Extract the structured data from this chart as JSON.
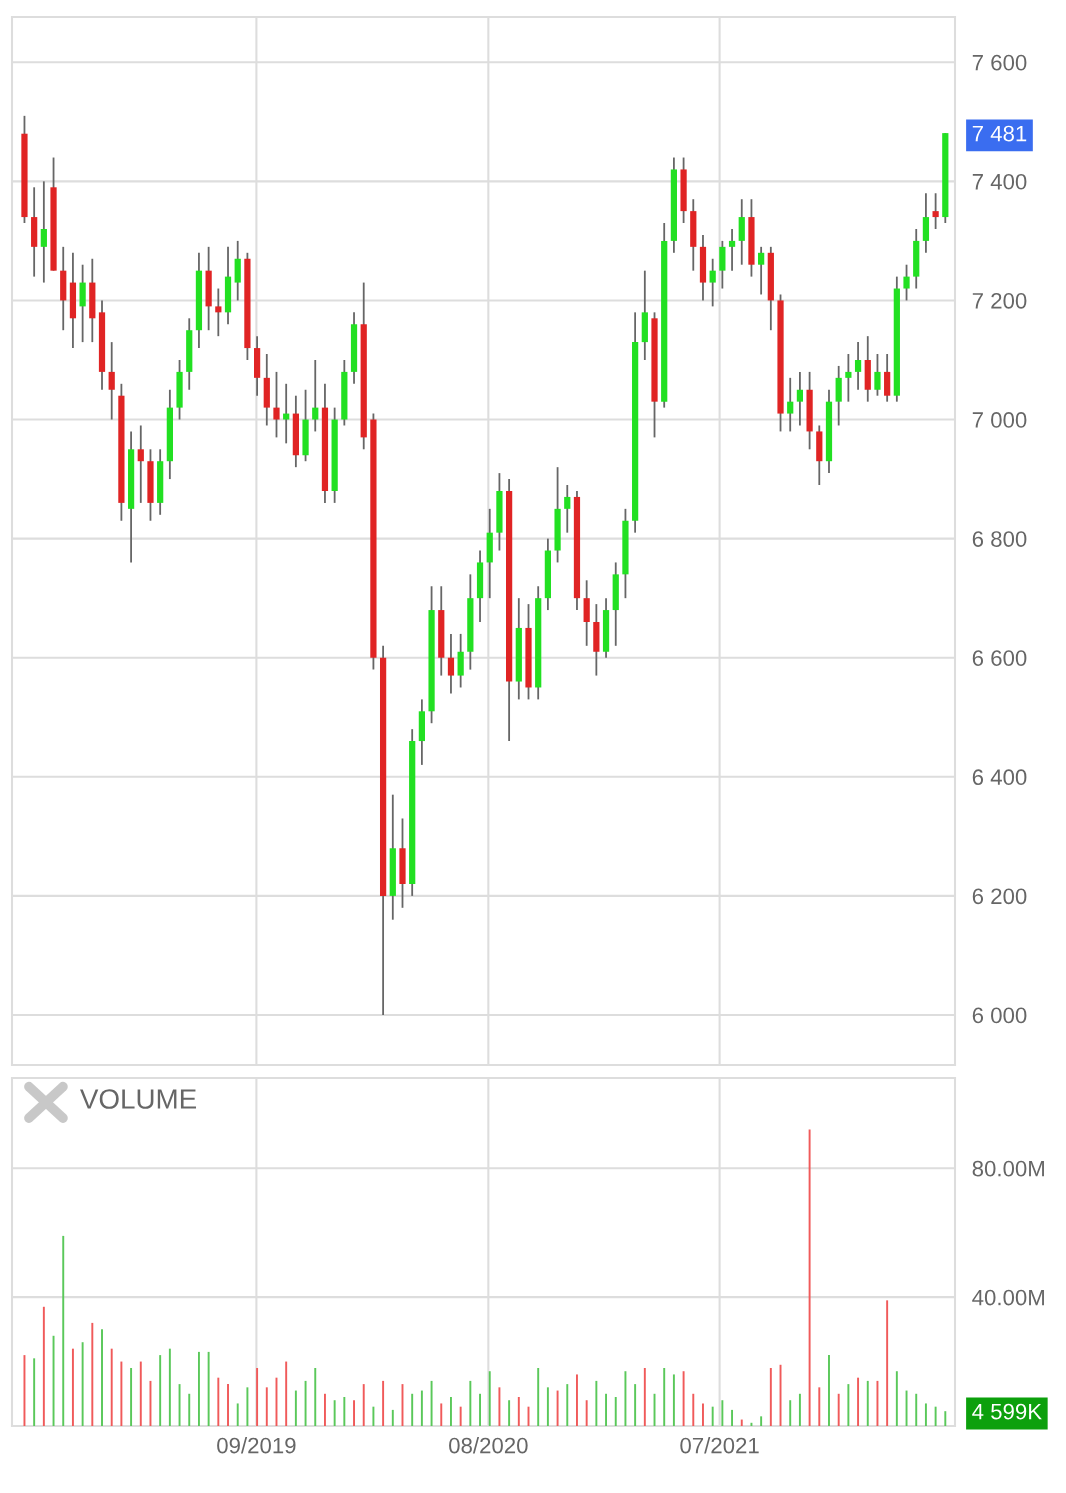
{
  "chart_data": [
    {
      "type": "candlestick",
      "x": [
        "2018-10-01",
        "2018-10-15",
        "2018-10-29",
        "2018-11-12",
        "2018-11-26",
        "2018-12-10",
        "2018-12-24",
        "2019-01-07",
        "2019-01-21",
        "2019-02-04",
        "2019-02-18",
        "2019-03-04",
        "2019-03-18",
        "2019-04-01",
        "2019-04-15",
        "2019-04-29",
        "2019-05-13",
        "2019-05-27",
        "2019-06-10",
        "2019-06-24",
        "2019-07-08",
        "2019-07-22",
        "2019-08-05",
        "2019-08-19",
        "2019-09-02",
        "2019-09-16",
        "2019-09-30",
        "2019-10-14",
        "2019-10-28",
        "2019-11-11",
        "2019-11-25",
        "2019-12-09",
        "2019-12-23",
        "2020-01-06",
        "2020-01-20",
        "2020-02-03",
        "2020-02-17",
        "2020-03-02",
        "2020-03-16",
        "2020-03-30",
        "2020-04-13",
        "2020-04-27",
        "2020-05-11",
        "2020-05-25",
        "2020-06-08",
        "2020-06-22",
        "2020-07-06",
        "2020-07-20",
        "2020-08-03",
        "2020-08-17",
        "2020-08-31",
        "2020-09-14",
        "2020-09-28",
        "2020-10-12",
        "2020-10-26",
        "2020-11-09",
        "2020-11-23",
        "2020-12-07",
        "2020-12-21",
        "2021-01-04",
        "2021-01-18",
        "2021-02-01",
        "2021-02-15",
        "2021-03-01",
        "2021-03-15",
        "2021-03-29",
        "2021-04-12",
        "2021-04-26",
        "2021-05-10",
        "2021-05-24",
        "2021-06-07",
        "2021-06-21",
        "2021-07-05",
        "2021-07-19",
        "2021-08-02",
        "2021-08-16",
        "2021-08-30",
        "2021-09-13",
        "2021-09-27",
        "2021-10-11",
        "2021-10-25",
        "2021-11-08",
        "2021-11-22",
        "2021-12-06",
        "2021-12-20",
        "2022-01-03",
        "2022-01-17",
        "2022-01-31",
        "2022-02-14",
        "2022-02-28",
        "2022-03-14",
        "2022-03-28",
        "2022-04-11",
        "2022-04-25",
        "2022-05-09",
        "2022-05-23"
      ],
      "ohlc": [
        [
          7480,
          7510,
          7330,
          7340
        ],
        [
          7340,
          7390,
          7240,
          7290
        ],
        [
          7290,
          7400,
          7230,
          7320
        ],
        [
          7390,
          7440,
          7250,
          7250
        ],
        [
          7250,
          7290,
          7150,
          7200
        ],
        [
          7230,
          7280,
          7120,
          7170
        ],
        [
          7190,
          7260,
          7130,
          7230
        ],
        [
          7230,
          7270,
          7130,
          7170
        ],
        [
          7180,
          7200,
          7050,
          7080
        ],
        [
          7080,
          7130,
          7000,
          7050
        ],
        [
          7040,
          7060,
          6830,
          6860
        ],
        [
          6850,
          6980,
          6760,
          6950
        ],
        [
          6950,
          6990,
          6860,
          6930
        ],
        [
          6930,
          6950,
          6830,
          6860
        ],
        [
          6860,
          6950,
          6840,
          6930
        ],
        [
          6930,
          7050,
          6900,
          7020
        ],
        [
          7020,
          7100,
          7000,
          7080
        ],
        [
          7080,
          7170,
          7050,
          7150
        ],
        [
          7150,
          7280,
          7120,
          7250
        ],
        [
          7250,
          7290,
          7150,
          7190
        ],
        [
          7190,
          7220,
          7140,
          7180
        ],
        [
          7180,
          7290,
          7160,
          7240
        ],
        [
          7230,
          7300,
          7200,
          7270
        ],
        [
          7270,
          7280,
          7100,
          7120
        ],
        [
          7120,
          7140,
          7040,
          7070
        ],
        [
          7070,
          7110,
          6990,
          7020
        ],
        [
          7020,
          7080,
          6970,
          7000
        ],
        [
          7000,
          7060,
          6960,
          7010
        ],
        [
          7010,
          7040,
          6920,
          6940
        ],
        [
          6940,
          7050,
          6930,
          7000
        ],
        [
          7000,
          7100,
          6980,
          7020
        ],
        [
          7020,
          7060,
          6860,
          6880
        ],
        [
          6880,
          7020,
          6860,
          7000
        ],
        [
          7000,
          7100,
          6990,
          7080
        ],
        [
          7080,
          7180,
          7060,
          7160
        ],
        [
          7160,
          7230,
          6950,
          6970
        ],
        [
          7000,
          7010,
          6580,
          6600
        ],
        [
          6600,
          6620,
          6000,
          6200
        ],
        [
          6200,
          6370,
          6160,
          6280
        ],
        [
          6280,
          6330,
          6180,
          6220
        ],
        [
          6220,
          6480,
          6200,
          6460
        ],
        [
          6460,
          6530,
          6420,
          6510
        ],
        [
          6510,
          6720,
          6490,
          6680
        ],
        [
          6680,
          6720,
          6570,
          6600
        ],
        [
          6600,
          6640,
          6540,
          6570
        ],
        [
          6570,
          6640,
          6550,
          6610
        ],
        [
          6610,
          6740,
          6580,
          6700
        ],
        [
          6700,
          6780,
          6660,
          6760
        ],
        [
          6760,
          6850,
          6700,
          6810
        ],
        [
          6810,
          6910,
          6780,
          6880
        ],
        [
          6880,
          6900,
          6460,
          6560
        ],
        [
          6560,
          6700,
          6530,
          6650
        ],
        [
          6650,
          6690,
          6530,
          6550
        ],
        [
          6550,
          6720,
          6530,
          6700
        ],
        [
          6700,
          6800,
          6680,
          6780
        ],
        [
          6780,
          6920,
          6760,
          6850
        ],
        [
          6850,
          6890,
          6810,
          6870
        ],
        [
          6870,
          6880,
          6680,
          6700
        ],
        [
          6700,
          6730,
          6620,
          6660
        ],
        [
          6660,
          6690,
          6570,
          6610
        ],
        [
          6610,
          6700,
          6600,
          6680
        ],
        [
          6680,
          6760,
          6620,
          6740
        ],
        [
          6740,
          6850,
          6700,
          6830
        ],
        [
          6830,
          7180,
          6810,
          7130
        ],
        [
          7130,
          7250,
          7100,
          7180
        ],
        [
          7170,
          7180,
          6970,
          7030
        ],
        [
          7030,
          7330,
          7020,
          7300
        ],
        [
          7300,
          7440,
          7280,
          7420
        ],
        [
          7420,
          7440,
          7330,
          7350
        ],
        [
          7350,
          7370,
          7250,
          7290
        ],
        [
          7290,
          7310,
          7200,
          7230
        ],
        [
          7230,
          7270,
          7190,
          7250
        ],
        [
          7250,
          7300,
          7220,
          7290
        ],
        [
          7290,
          7320,
          7250,
          7300
        ],
        [
          7300,
          7370,
          7260,
          7340
        ],
        [
          7340,
          7370,
          7240,
          7260
        ],
        [
          7260,
          7290,
          7210,
          7280
        ],
        [
          7280,
          7290,
          7150,
          7200
        ],
        [
          7200,
          7210,
          6980,
          7010
        ],
        [
          7010,
          7070,
          6980,
          7030
        ],
        [
          7030,
          7080,
          6990,
          7050
        ],
        [
          7050,
          7080,
          6950,
          6980
        ],
        [
          6980,
          6990,
          6890,
          6930
        ],
        [
          6930,
          7050,
          6910,
          7030
        ],
        [
          7030,
          7090,
          6990,
          7070
        ],
        [
          7070,
          7110,
          7030,
          7080
        ],
        [
          7080,
          7130,
          7050,
          7100
        ],
        [
          7100,
          7140,
          7030,
          7050
        ],
        [
          7050,
          7110,
          7040,
          7080
        ],
        [
          7080,
          7110,
          7030,
          7040
        ],
        [
          7040,
          7240,
          7030,
          7220
        ],
        [
          7220,
          7260,
          7200,
          7240
        ],
        [
          7240,
          7320,
          7220,
          7300
        ],
        [
          7300,
          7380,
          7280,
          7340
        ],
        [
          7350,
          7380,
          7320,
          7340
        ],
        [
          7340,
          7481,
          7330,
          7481
        ]
      ],
      "colors": [
        "#e02424",
        "#e02424",
        "#22e022",
        "#e02424",
        "#e02424",
        "#e02424",
        "#22e022",
        "#e02424",
        "#e02424",
        "#e02424",
        "#e02424",
        "#22e022",
        "#e02424",
        "#e02424",
        "#22e022",
        "#22e022",
        "#22e022",
        "#22e022",
        "#22e022",
        "#e02424",
        "#e02424",
        "#22e022",
        "#22e022",
        "#e02424",
        "#e02424",
        "#e02424",
        "#e02424",
        "#22e022",
        "#e02424",
        "#22e022",
        "#22e022",
        "#e02424",
        "#22e022",
        "#22e022",
        "#22e022",
        "#e02424",
        "#e02424",
        "#e02424",
        "#22e022",
        "#e02424",
        "#22e022",
        "#22e022",
        "#22e022",
        "#e02424",
        "#e02424",
        "#22e022",
        "#22e022",
        "#22e022",
        "#22e022",
        "#22e022",
        "#e02424",
        "#22e022",
        "#e02424",
        "#22e022",
        "#22e022",
        "#22e022",
        "#22e022",
        "#e02424",
        "#e02424",
        "#e02424",
        "#22e022",
        "#22e022",
        "#22e022",
        "#22e022",
        "#22e022",
        "#e02424",
        "#22e022",
        "#22e022",
        "#e02424",
        "#e02424",
        "#e02424",
        "#22e022",
        "#22e022",
        "#22e022",
        "#22e022",
        "#e02424",
        "#22e022",
        "#e02424",
        "#e02424",
        "#22e022",
        "#22e022",
        "#e02424",
        "#e02424",
        "#22e022",
        "#22e022",
        "#22e022",
        "#22e022",
        "#e02424",
        "#22e022",
        "#e02424",
        "#22e022",
        "#22e022",
        "#22e022",
        "#22e022",
        "#e02424",
        "#22e022"
      ],
      "xlim": [
        "2018-09-13",
        "2022-06-06"
      ],
      "xticks": [
        {
          "value": "2019-09-01",
          "label": null
        },
        {
          "value": "2020-08-01",
          "label": null
        },
        {
          "value": "2021-07-01",
          "label": null
        }
      ],
      "ylim": [
        5916,
        7676
      ],
      "yticks": [
        {
          "value": 6000,
          "label": "6 000"
        },
        {
          "value": 6200,
          "label": "6 200"
        },
        {
          "value": 6400,
          "label": "6 400"
        },
        {
          "value": 6600,
          "label": "6 600"
        },
        {
          "value": 6800,
          "label": "6 800"
        },
        {
          "value": 7000,
          "label": "7 000"
        },
        {
          "value": 7200,
          "label": "7 200"
        },
        {
          "value": 7400,
          "label": "7 400"
        },
        {
          "value": 7481,
          "label": "7 481"
        },
        {
          "value": 7600,
          "label": "7 600"
        }
      ],
      "grid": true,
      "tick_labels": "y"
    },
    {
      "type": "bar",
      "title": "VOLUME",
      "x": [
        "2018-10-01",
        "2018-10-15",
        "2018-10-29",
        "2018-11-12",
        "2018-11-26",
        "2018-12-10",
        "2018-12-24",
        "2019-01-07",
        "2019-01-21",
        "2019-02-04",
        "2019-02-18",
        "2019-03-04",
        "2019-03-18",
        "2019-04-01",
        "2019-04-15",
        "2019-04-29",
        "2019-05-13",
        "2019-05-27",
        "2019-06-10",
        "2019-06-24",
        "2019-07-08",
        "2019-07-22",
        "2019-08-05",
        "2019-08-19",
        "2019-09-02",
        "2019-09-16",
        "2019-09-30",
        "2019-10-14",
        "2019-10-28",
        "2019-11-11",
        "2019-11-25",
        "2019-12-09",
        "2019-12-23",
        "2020-01-06",
        "2020-01-20",
        "2020-02-03",
        "2020-02-17",
        "2020-03-02",
        "2020-03-16",
        "2020-03-30",
        "2020-04-13",
        "2020-04-27",
        "2020-05-11",
        "2020-05-25",
        "2020-06-08",
        "2020-06-22",
        "2020-07-06",
        "2020-07-20",
        "2020-08-03",
        "2020-08-17",
        "2020-08-31",
        "2020-09-14",
        "2020-09-28",
        "2020-10-12",
        "2020-10-26",
        "2020-11-09",
        "2020-11-23",
        "2020-12-07",
        "2020-12-21",
        "2021-01-04",
        "2021-01-18",
        "2021-02-01",
        "2021-02-15",
        "2021-03-01",
        "2021-03-15",
        "2021-03-29",
        "2021-04-12",
        "2021-04-26",
        "2021-05-10",
        "2021-05-24",
        "2021-06-07",
        "2021-06-21",
        "2021-07-05",
        "2021-07-19",
        "2021-08-02",
        "2021-08-16",
        "2021-08-30",
        "2021-09-13",
        "2021-09-27",
        "2021-10-11",
        "2021-10-25",
        "2021-11-08",
        "2021-11-22",
        "2021-12-06",
        "2021-12-20",
        "2022-01-03",
        "2022-01-17",
        "2022-01-31",
        "2022-02-14",
        "2022-02-28",
        "2022-03-14",
        "2022-03-28",
        "2022-04-11",
        "2022-04-25",
        "2022-05-09",
        "2022-05-23"
      ],
      "values": [
        22000000,
        21000000,
        37000000,
        28000000,
        59000000,
        24000000,
        26000000,
        32000000,
        30000000,
        24000000,
        20000000,
        18000000,
        20000000,
        14000000,
        22000000,
        24000000,
        13000000,
        10000000,
        23000000,
        23000000,
        15000000,
        13000000,
        7000000,
        12000000,
        18000000,
        12000000,
        15000000,
        20000000,
        11000000,
        14000000,
        18000000,
        10000000,
        8000000,
        9000000,
        8000000,
        13000000,
        6000000,
        14000000,
        5000000,
        13000000,
        10000000,
        11000000,
        14000000,
        7000000,
        9000000,
        6000000,
        14000000,
        10000000,
        17000000,
        12000000,
        8000000,
        9000000,
        6000000,
        18000000,
        12000000,
        11000000,
        13000000,
        16000000,
        8000000,
        14000000,
        10000000,
        9000000,
        17000000,
        13000000,
        18000000,
        10000000,
        18000000,
        16000000,
        17000000,
        10000000,
        7000000,
        6000000,
        8000000,
        5000000,
        2000000,
        1000000,
        3000000,
        18000000,
        19000000,
        8000000,
        10000000,
        92000000,
        12000000,
        22000000,
        10000000,
        13000000,
        15000000,
        14000000,
        14000000,
        39000000,
        17000000,
        11000000,
        10000000,
        7000000,
        6000000,
        4599000
      ],
      "colors": [
        "#f05a5a",
        "#5ac85a",
        "#f05a5a",
        "#5ac85a",
        "#5ac85a",
        "#f05a5a",
        "#5ac85a",
        "#f05a5a",
        "#5ac85a",
        "#f05a5a",
        "#f05a5a",
        "#5ac85a",
        "#f05a5a",
        "#f05a5a",
        "#5ac85a",
        "#5ac85a",
        "#5ac85a",
        "#5ac85a",
        "#5ac85a",
        "#5ac85a",
        "#f05a5a",
        "#f05a5a",
        "#5ac85a",
        "#5ac85a",
        "#f05a5a",
        "#f05a5a",
        "#f05a5a",
        "#f05a5a",
        "#5ac85a",
        "#5ac85a",
        "#5ac85a",
        "#f05a5a",
        "#5ac85a",
        "#5ac85a",
        "#f05a5a",
        "#f05a5a",
        "#5ac85a",
        "#f05a5a",
        "#5ac85a",
        "#f05a5a",
        "#5ac85a",
        "#5ac85a",
        "#5ac85a",
        "#f05a5a",
        "#5ac85a",
        "#f05a5a",
        "#5ac85a",
        "#5ac85a",
        "#5ac85a",
        "#f05a5a",
        "#5ac85a",
        "#f05a5a",
        "#f05a5a",
        "#5ac85a",
        "#5ac85a",
        "#f05a5a",
        "#5ac85a",
        "#f05a5a",
        "#f05a5a",
        "#5ac85a",
        "#5ac85a",
        "#5ac85a",
        "#5ac85a",
        "#5ac85a",
        "#f05a5a",
        "#5ac85a",
        "#5ac85a",
        "#5ac85a",
        "#f05a5a",
        "#f05a5a",
        "#f05a5a",
        "#5ac85a",
        "#5ac85a",
        "#5ac85a",
        "#f05a5a",
        "#5ac85a",
        "#5ac85a",
        "#f05a5a",
        "#f05a5a",
        "#5ac85a",
        "#5ac85a",
        "#f05a5a",
        "#f05a5a",
        "#5ac85a",
        "#f05a5a",
        "#5ac85a",
        "#f05a5a",
        "#5ac85a",
        "#f05a5a",
        "#f05a5a",
        "#5ac85a",
        "#5ac85a",
        "#5ac85a",
        "#5ac85a",
        "#5ac85a",
        "#5ac85a"
      ],
      "xlim": [
        "2018-09-13",
        "2022-06-06"
      ],
      "xticks": [
        {
          "value": "2019-09-01",
          "label": "09/2019"
        },
        {
          "value": "2020-08-01",
          "label": "08/2020"
        },
        {
          "value": "2021-07-01",
          "label": "07/2021"
        }
      ],
      "ylim": [
        0,
        108000000
      ],
      "yticks": [
        {
          "value": 4599000,
          "label": "4 599K"
        },
        {
          "value": 40000000,
          "label": "40.00M"
        },
        {
          "value": 80000000,
          "label": "80.00M"
        }
      ],
      "grid": true
    }
  ]
}
